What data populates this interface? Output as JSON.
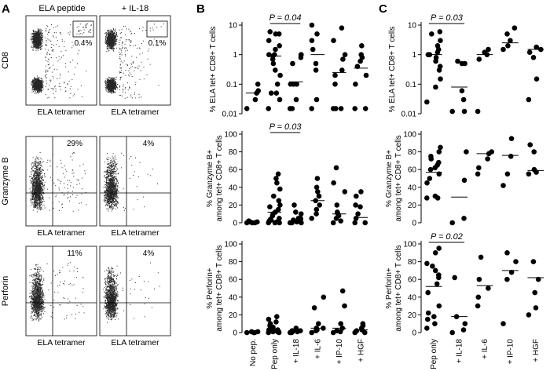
{
  "panel_labels": {
    "a": "A",
    "b": "B",
    "c": "C"
  },
  "colors": {
    "dot": "#000000",
    "axis": "#000000",
    "background": "#ffffff"
  },
  "flow_panels": {
    "col_titles": [
      "ELA peptide",
      "+ IL-18"
    ],
    "rows": [
      {
        "ylabel": "CD8",
        "xlabel": "ELA tetramer",
        "pcts": [
          "0.4%",
          "0.1%"
        ]
      },
      {
        "ylabel": "Granzyme B",
        "xlabel": "ELA tetramer",
        "pcts": [
          "29%",
          "4%"
        ]
      },
      {
        "ylabel": "Perforin",
        "xlabel": "ELA tetramer",
        "pcts": [
          "11%",
          "4%"
        ]
      }
    ]
  },
  "chart_data": [
    {
      "panel": "B-top",
      "type": "scatter",
      "categories": [
        "No pep.",
        "Pep only",
        "+ IL-18",
        "+ IL-6",
        "+ IP-10",
        "+ HGF"
      ],
      "ylabel": "% ELA tet+ CD8+ T cells",
      "yscale": "log",
      "ylim": [
        0.01,
        10
      ],
      "yticks": [
        "0.01",
        "0.1",
        "1",
        "10"
      ],
      "annotation": {
        "text": "P = 0.04",
        "between": [
          "Pep only",
          "+ IL-18"
        ]
      },
      "points": [
        [
          0.015,
          0.03,
          0.05,
          0.06,
          0.1
        ],
        [
          0.015,
          0.03,
          0.05,
          0.1,
          0.2,
          0.3,
          0.5,
          0.7,
          0.9,
          1,
          1,
          1.5,
          2,
          3,
          5,
          5,
          6,
          0.05
        ],
        [
          0.015,
          0.015,
          0.03,
          0.1,
          0.1,
          0.1,
          0.5,
          0.8,
          1,
          1
        ],
        [
          0.015,
          0.03,
          0.3,
          0.5,
          1.5,
          3,
          10,
          5
        ],
        [
          0.015,
          0.015,
          0.015,
          0.1,
          0.2,
          0.3,
          0.7,
          1,
          3,
          8
        ],
        [
          0.015,
          0.015,
          0.1,
          0.2,
          0.4,
          0.6,
          0.8,
          1,
          2
        ]
      ],
      "medians": [
        0.05,
        0.9,
        0.12,
        1,
        0.25,
        0.35
      ]
    },
    {
      "panel": "B-middle",
      "type": "scatter",
      "categories": [
        "No pep.",
        "Pep only",
        "+ IL-18",
        "+ IL-6",
        "+ IP-10",
        "+ HGF"
      ],
      "ylabel": "% Granzyme B+ among tet+ CD8+ T cells",
      "ylim": [
        0,
        100
      ],
      "yticks": [
        "0",
        "20",
        "40",
        "60",
        "80",
        "100"
      ],
      "annotation": {
        "text": "P = 0.03",
        "between": [
          "Pep only",
          "+ IL-18"
        ]
      },
      "points": [
        [
          0,
          0,
          1,
          1,
          2,
          0
        ],
        [
          0,
          0,
          1,
          2,
          3,
          4,
          5,
          8,
          10,
          12,
          15,
          18,
          20,
          25,
          30,
          38,
          45,
          50,
          55,
          0
        ],
        [
          0,
          0,
          1,
          2,
          3,
          4,
          5,
          5,
          10,
          12,
          20,
          0
        ],
        [
          5,
          10,
          15,
          20,
          25,
          30,
          35,
          40,
          50
        ],
        [
          0,
          2,
          5,
          8,
          10,
          12,
          20,
          35,
          45,
          62
        ],
        [
          0,
          0,
          5,
          10,
          18,
          20,
          30,
          35
        ]
      ],
      "medians": [
        0,
        12,
        2,
        25,
        10,
        6
      ]
    },
    {
      "panel": "B-bottom",
      "type": "scatter",
      "categories": [
        "No pep.",
        "Pep only",
        "+ IL-18",
        "+ IL-6",
        "+ IP-10",
        "+ HGF"
      ],
      "ylabel": "% Perforin+ among tet+ CD8+ T cells",
      "ylim": [
        0,
        100
      ],
      "yticks": [
        "0",
        "20",
        "40",
        "60",
        "80",
        "100"
      ],
      "points": [
        [
          0,
          0,
          1,
          0,
          1
        ],
        [
          0,
          0,
          1,
          1,
          2,
          3,
          4,
          5,
          6,
          8,
          10,
          12,
          15,
          18,
          2,
          3
        ],
        [
          0,
          0,
          1,
          2,
          3,
          5,
          1,
          2
        ],
        [
          0,
          2,
          3,
          5,
          10,
          28,
          40,
          5
        ],
        [
          0,
          1,
          2,
          5,
          10,
          30,
          47
        ],
        [
          0,
          0,
          2,
          5,
          8,
          10,
          3
        ]
      ],
      "medians": [
        0,
        2,
        2,
        5,
        5,
        3
      ]
    },
    {
      "panel": "C-top",
      "type": "scatter",
      "categories": [
        "Pep only",
        "+ IL-18",
        "+ IL-6",
        "+ IP-10",
        "+ HGF"
      ],
      "ylabel": "% ELA tet+ CD8+ T cells",
      "yscale": "log",
      "ylim": [
        0.01,
        10
      ],
      "yticks": [
        "0.01",
        "0.1",
        "1",
        "10"
      ],
      "annotation": {
        "text": "P = 0.03",
        "between": [
          "Pep only",
          "+ IL-18"
        ]
      },
      "points": [
        [
          0.025,
          0.08,
          0.15,
          0.3,
          0.6,
          0.8,
          1,
          1.2,
          1.5,
          2,
          3,
          5,
          6,
          0.4,
          1
        ],
        [
          0.012,
          0.012,
          0.03,
          0.06,
          0.5,
          0.6,
          0.5
        ],
        [
          0.012,
          0.7,
          1,
          1.2,
          1.5
        ],
        [
          1.5,
          2,
          3,
          5,
          8
        ],
        [
          0.03,
          0.15,
          0.8,
          1.2,
          1.5,
          1.8
        ]
      ],
      "medians": [
        1,
        0.08,
        1,
        2.5,
        1.5
      ]
    },
    {
      "panel": "C-middle",
      "type": "scatter",
      "categories": [
        "Pep only",
        "+ IL-18",
        "+ IL-6",
        "+ IP-10",
        "+ HGF"
      ],
      "ylabel": "% Granzyme B+ among tet+ CD8+ T cells",
      "ylim": [
        0,
        100
      ],
      "yticks": [
        "0",
        "20",
        "40",
        "60",
        "80",
        "100"
      ],
      "points": [
        [
          28,
          30,
          45,
          50,
          55,
          60,
          62,
          65,
          68,
          72,
          75,
          80,
          85,
          28
        ],
        [
          0,
          5,
          48,
          80
        ],
        [
          55,
          62,
          72,
          78,
          80
        ],
        [
          42,
          55,
          75,
          95
        ],
        [
          55,
          57,
          60,
          80,
          88
        ]
      ],
      "medians": [
        57,
        29,
        78,
        76,
        59
      ]
    },
    {
      "panel": "C-bottom",
      "type": "scatter",
      "categories": [
        "Pep only",
        "+ IL-18",
        "+ IL-6",
        "+ IP-10",
        "+ HGF"
      ],
      "ylabel": "% Perforin+ among tet+ CD8+ T cells",
      "ylim": [
        0,
        100
      ],
      "yticks": [
        "0",
        "20",
        "40",
        "60",
        "80",
        "100"
      ],
      "annotation": {
        "text": "P = 0.02",
        "between": [
          "Pep only",
          "+ IL-18"
        ]
      },
      "points": [
        [
          5,
          10,
          15,
          18,
          22,
          30,
          45,
          55,
          62,
          65,
          70,
          75,
          78,
          90,
          95
        ],
        [
          0,
          3,
          10,
          18,
          62
        ],
        [
          30,
          40,
          50,
          60,
          85
        ],
        [
          10,
          60,
          68,
          80,
          90
        ],
        [
          20,
          28,
          45,
          60,
          80
        ]
      ],
      "medians": [
        52,
        18,
        53,
        70,
        62
      ]
    }
  ]
}
